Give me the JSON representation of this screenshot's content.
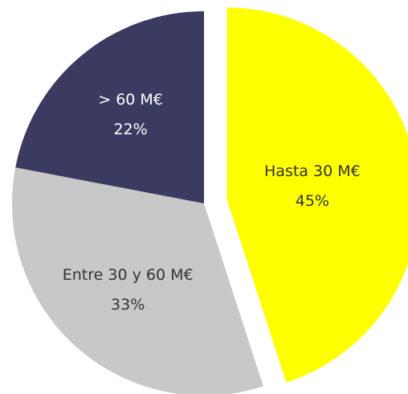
{
  "chart_data": {
    "type": "pie",
    "categories": [
      "Hasta 30 M€",
      "Entre 30 y 60 M€",
      "> 60 M€"
    ],
    "values": [
      45,
      33,
      22
    ],
    "value_labels": [
      "45%",
      "33%",
      "22%"
    ],
    "colors": [
      "#ffff00",
      "#c8c8c8",
      "#3b3b62"
    ],
    "exploded": [
      true,
      false,
      false
    ]
  }
}
